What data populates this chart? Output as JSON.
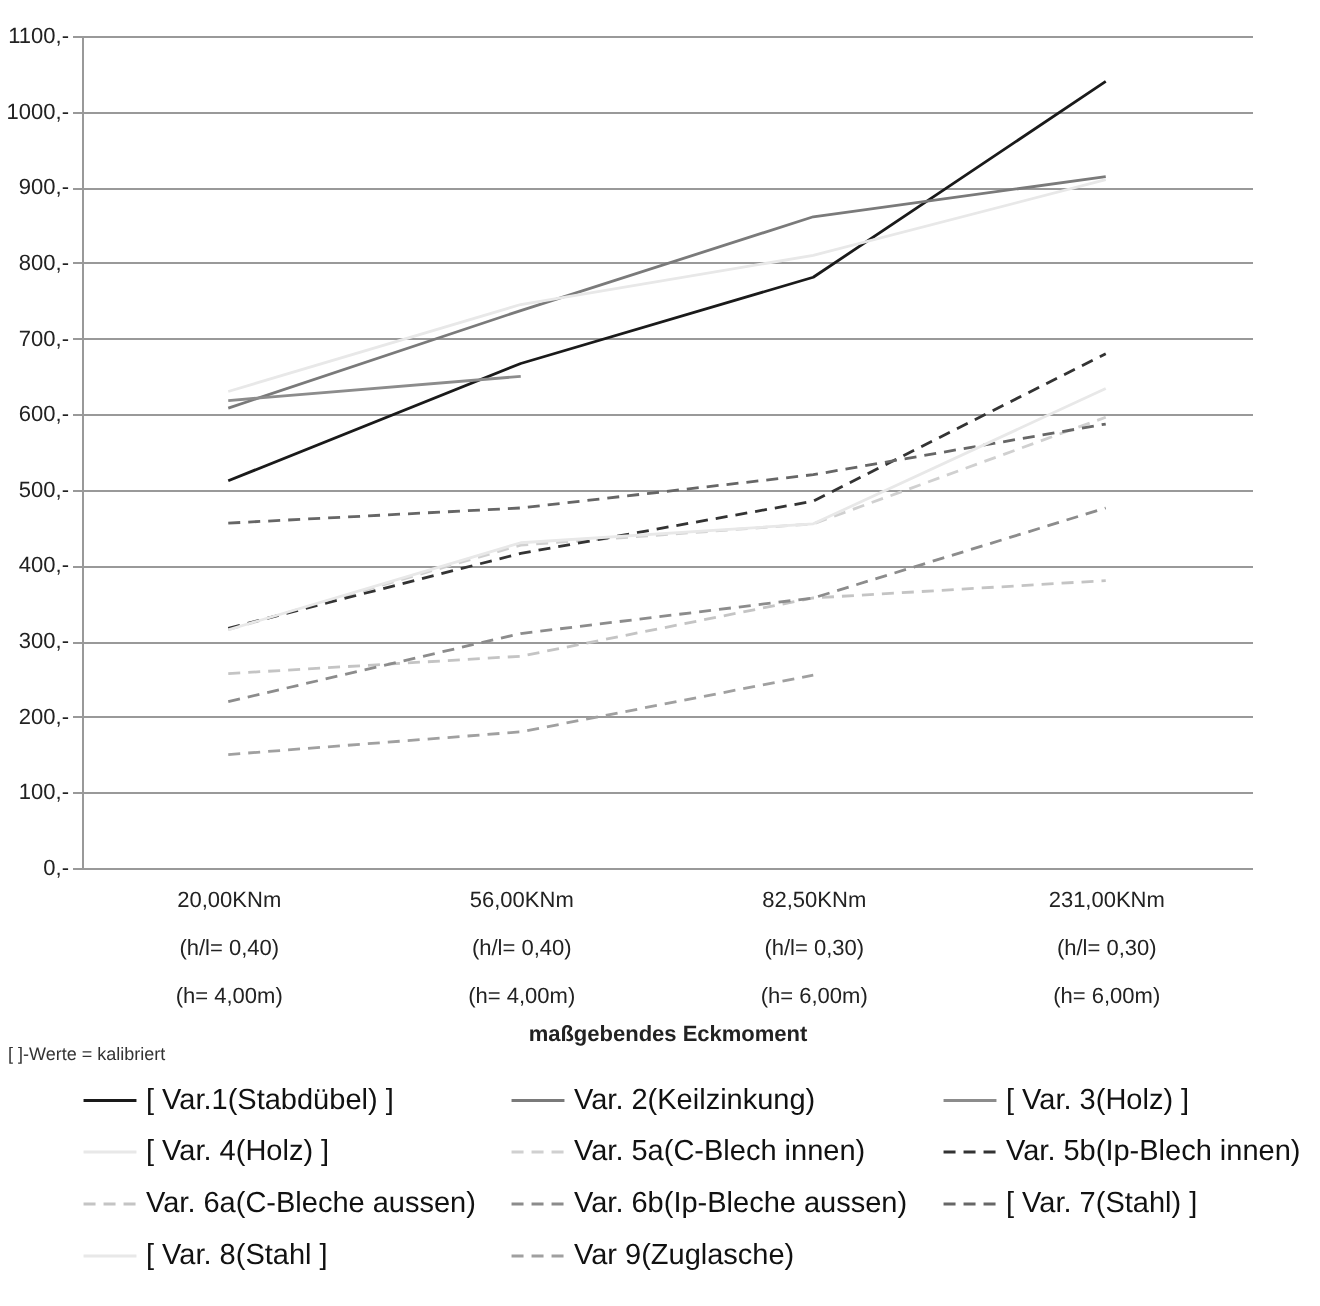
{
  "chart_data": {
    "type": "line",
    "xlabel": "maßgebendes Eckmoment",
    "annotations": [
      "[ ]-Werte = kalibriert"
    ],
    "categories": [
      "20,00KNm\n(h/l= 0,40)\n(h= 4,00m)",
      "56,00KNm\n(h/l= 0,40)\n(h= 4,00m)",
      "82,50KNm\n(h/l= 0,30)\n(h= 6,00m)",
      "231,00KNm\n(h/l= 0,30)\n(h= 6,00m)"
    ],
    "series": [
      {
        "name": "[ Var.1(Stabdübel) ]",
        "color": "#1a1a1a",
        "line_style": "solid",
        "values": [
          512,
          667,
          781,
          1040
        ]
      },
      {
        "name": "Var. 2(Keilzinkung)",
        "color": "#7a7a7a",
        "line_style": "solid",
        "values": [
          608,
          737,
          861,
          914
        ]
      },
      {
        "name": "[ Var. 3(Holz) ]",
        "color": "#8c8c8c",
        "line_style": "solid",
        "values": [
          618,
          650,
          null,
          null
        ]
      },
      {
        "name": "[ Var. 4(Holz) ]",
        "color": "#e8e8e8",
        "line_style": "solid",
        "values": [
          630,
          745,
          810,
          910
        ]
      },
      {
        "name": "Var. 5a(C-Blech innen)",
        "color": "#d0d0d0",
        "line_style": "dashed",
        "values": [
          315,
          427,
          455,
          596
        ]
      },
      {
        "name": "Var. 5b(Ip-Blech innen)",
        "color": "#333333",
        "line_style": "dashed",
        "values": [
          317,
          416,
          485,
          680
        ]
      },
      {
        "name": "Var. 6a(C-Bleche aussen)",
        "color": "#c4c4c4",
        "line_style": "dashed",
        "values": [
          257,
          280,
          357,
          380
        ]
      },
      {
        "name": "Var. 6b(Ip-Bleche aussen)",
        "color": "#8c8c8c",
        "line_style": "dashed",
        "values": [
          220,
          310,
          357,
          476
        ]
      },
      {
        "name": "[ Var. 7(Stahl) ]",
        "color": "#666666",
        "line_style": "dashed",
        "values": [
          456,
          476,
          520,
          587
        ]
      },
      {
        "name": "[ Var. 8(Stahl ]",
        "color": "#e8e8e8",
        "line_style": "solid",
        "values": [
          315,
          430,
          455,
          634
        ]
      },
      {
        "name": "Var 9(Zuglasche)",
        "color": "#a0a0a0",
        "line_style": "dashed",
        "values": [
          150,
          180,
          255,
          null
        ]
      }
    ],
    "ylim": [
      0,
      1100
    ],
    "yticks": [
      {
        "value": 0,
        "label": "0,-"
      },
      {
        "value": 100,
        "label": "100,-"
      },
      {
        "value": 200,
        "label": "200,-"
      },
      {
        "value": 300,
        "label": "300,-"
      },
      {
        "value": 400,
        "label": "400,-"
      },
      {
        "value": 500,
        "label": "500,-"
      },
      {
        "value": 600,
        "label": "600,-"
      },
      {
        "value": 700,
        "label": "700,-"
      },
      {
        "value": 800,
        "label": "800,-"
      },
      {
        "value": 900,
        "label": "900,-"
      },
      {
        "value": 1000,
        "label": "1000,-"
      },
      {
        "value": 1100,
        "label": "1100,-"
      }
    ],
    "grid": "y",
    "legend": "bottom",
    "marker": "none"
  }
}
